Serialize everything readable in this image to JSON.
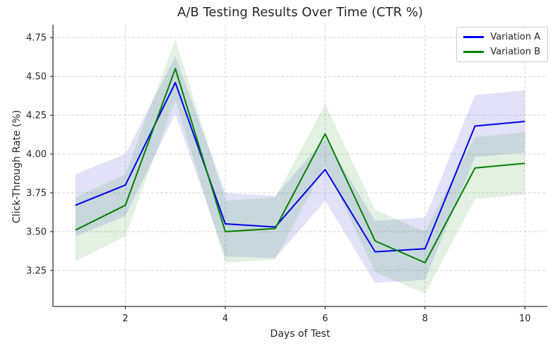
{
  "chart_data": {
    "type": "line",
    "title": "A/B Testing Results Over Time (CTR %)",
    "xlabel": "Days of Test",
    "ylabel": "Click-Through Rate (%)",
    "x": [
      1,
      2,
      3,
      4,
      5,
      6,
      7,
      8,
      9,
      10
    ],
    "xticks": [
      2,
      4,
      6,
      8,
      10
    ],
    "yticks": [
      3.25,
      3.5,
      3.75,
      4.0,
      4.25,
      4.5,
      4.75
    ],
    "xlim": [
      0.55,
      10.45
    ],
    "ylim": [
      3.018,
      4.833
    ],
    "grid": "both axes, light gray dashed",
    "legend_position": "upper right",
    "grid_color": "#d3d3d3",
    "spine_color": "#333333",
    "text_color": "#262626",
    "series": [
      {
        "name": "Variation A",
        "color": "#0000ee",
        "band_fill": "#3333cc",
        "band_opacity": 0.15,
        "values": [
          3.67,
          3.8,
          4.46,
          3.55,
          3.53,
          3.9,
          3.37,
          3.39,
          4.18,
          4.21
        ],
        "band_upper": [
          3.87,
          4.0,
          4.63,
          3.75,
          3.73,
          4.1,
          3.57,
          3.59,
          4.38,
          4.41
        ],
        "band_lower": [
          3.47,
          3.6,
          4.26,
          3.34,
          3.33,
          3.7,
          3.17,
          3.19,
          3.98,
          4.01
        ]
      },
      {
        "name": "Variation B",
        "color": "#008000",
        "band_fill": "#339933",
        "band_opacity": 0.14,
        "values": [
          3.51,
          3.67,
          4.55,
          3.5,
          3.52,
          4.13,
          3.44,
          3.3,
          3.91,
          3.94
        ],
        "band_upper": [
          3.72,
          3.87,
          4.74,
          3.7,
          3.72,
          4.32,
          3.64,
          3.5,
          4.11,
          4.14
        ],
        "band_lower": [
          3.31,
          3.47,
          4.35,
          3.3,
          3.32,
          3.93,
          3.24,
          3.1,
          3.71,
          3.74
        ]
      }
    ]
  }
}
